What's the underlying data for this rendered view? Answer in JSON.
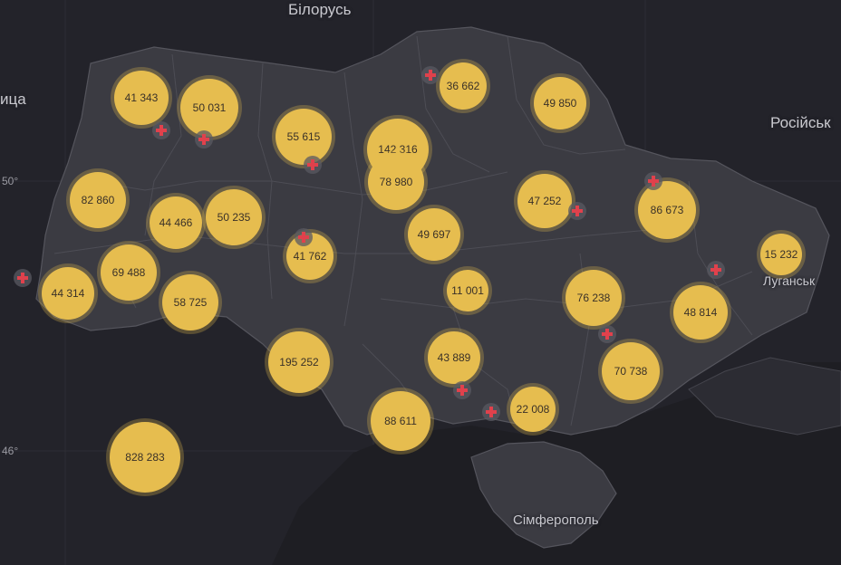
{
  "place_labels": {
    "belarus": "Білорусь",
    "russia_partial": "Російськ",
    "left_partial": "ица",
    "luhansk": "Луганськ",
    "simferopol": "Сімферополь"
  },
  "coordinates": {
    "lat_50": "50°",
    "lat_46": "46°"
  },
  "colors": {
    "background": "#23232a",
    "land": "#3a3a41",
    "sea": "#1f1f24",
    "bubble": "#e6bd4f",
    "bubble_text": "#3a3128",
    "cross": "#e0414c"
  },
  "icons": {
    "marker": "medical-cross-icon"
  },
  "bubbles": [
    {
      "label": "41 343"
    },
    {
      "label": "50 031"
    },
    {
      "label": "55 615"
    },
    {
      "label": "142 316"
    },
    {
      "label": "36 662"
    },
    {
      "label": "49 850"
    },
    {
      "label": "78 980"
    },
    {
      "label": "82 860"
    },
    {
      "label": "44 466"
    },
    {
      "label": "50 235"
    },
    {
      "label": "47 252"
    },
    {
      "label": "86 673"
    },
    {
      "label": "41 762"
    },
    {
      "label": "49 697"
    },
    {
      "label": "15 232"
    },
    {
      "label": "44 314"
    },
    {
      "label": "69 488"
    },
    {
      "label": "58 725"
    },
    {
      "label": "11 001"
    },
    {
      "label": "76 238"
    },
    {
      "label": "48 814"
    },
    {
      "label": "195 252"
    },
    {
      "label": "43 889"
    },
    {
      "label": "70 738"
    },
    {
      "label": "88 611"
    },
    {
      "label": "22 008"
    },
    {
      "label": "828 283"
    }
  ]
}
